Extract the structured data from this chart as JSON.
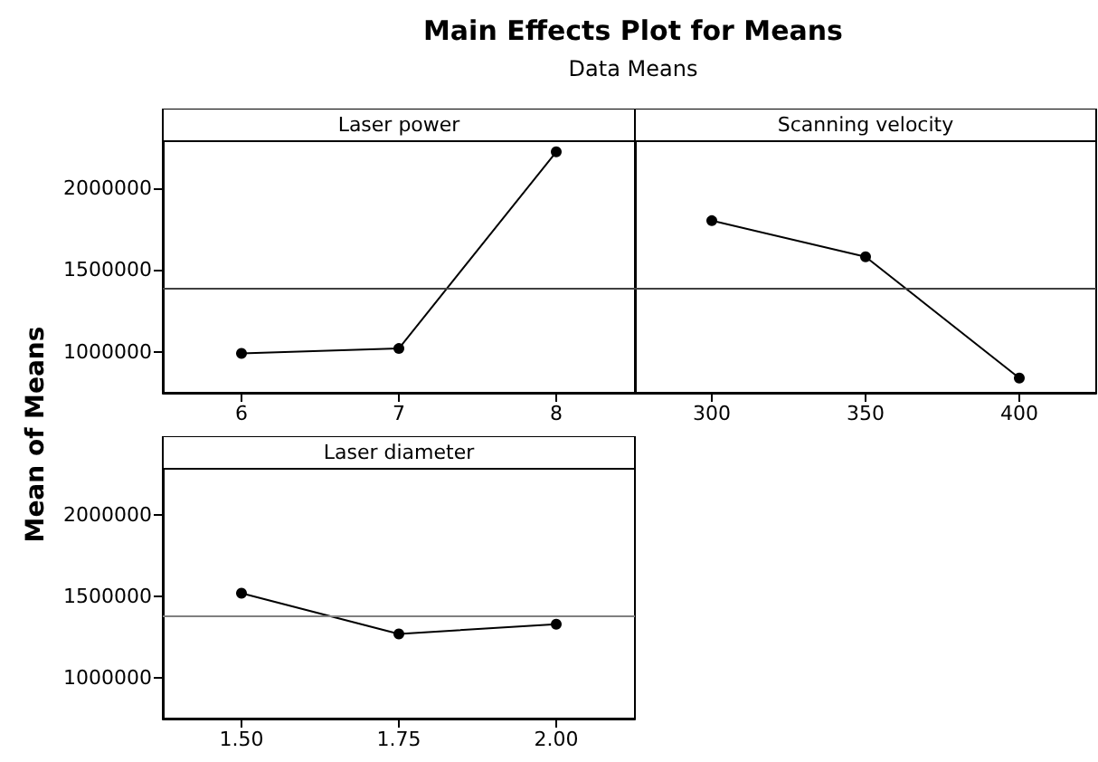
{
  "chart_data": [
    {
      "type": "line",
      "title": "Main Effects Plot for Means",
      "subtitle": "Data Means",
      "ylabel": "Mean of Means",
      "xlabel": "Laser power",
      "categories": [
        "6",
        "7",
        "8"
      ],
      "series": [
        {
          "color": "#000000",
          "values": [
            990000,
            1020000,
            2220000
          ]
        }
      ],
      "ylim": [
        750000,
        2285000
      ],
      "yticks": [
        1000000,
        1500000,
        2000000
      ],
      "ref_lines": [
        {
          "axis": "y",
          "value": 1385000,
          "color": "#404040"
        }
      ],
      "marker": "circle",
      "line_style": "solid"
    },
    {
      "type": "line",
      "xlabel": "Scanning velocity",
      "categories": [
        "300",
        "350",
        "400"
      ],
      "series": [
        {
          "color": "#000000",
          "values": [
            1800000,
            1580000,
            840000
          ]
        }
      ],
      "ylim": [
        750000,
        2285000
      ],
      "yticks": [
        1000000,
        1500000,
        2000000
      ],
      "ref_lines": [
        {
          "axis": "y",
          "value": 1385000,
          "color": "#404040"
        }
      ],
      "marker": "circle",
      "line_style": "solid",
      "tick_labels": "x"
    },
    {
      "type": "line",
      "xlabel": "Laser diameter",
      "categories": [
        "1.50",
        "1.75",
        "2.00"
      ],
      "series": [
        {
          "color": "#000000",
          "values": [
            1520000,
            1270000,
            1330000
          ]
        }
      ],
      "ylim": [
        750000,
        2285000
      ],
      "yticks": [
        1000000,
        1500000,
        2000000
      ],
      "ref_lines": [
        {
          "axis": "y",
          "value": 1385000,
          "color": "#808080"
        }
      ],
      "marker": "circle",
      "line_style": "solid"
    }
  ]
}
